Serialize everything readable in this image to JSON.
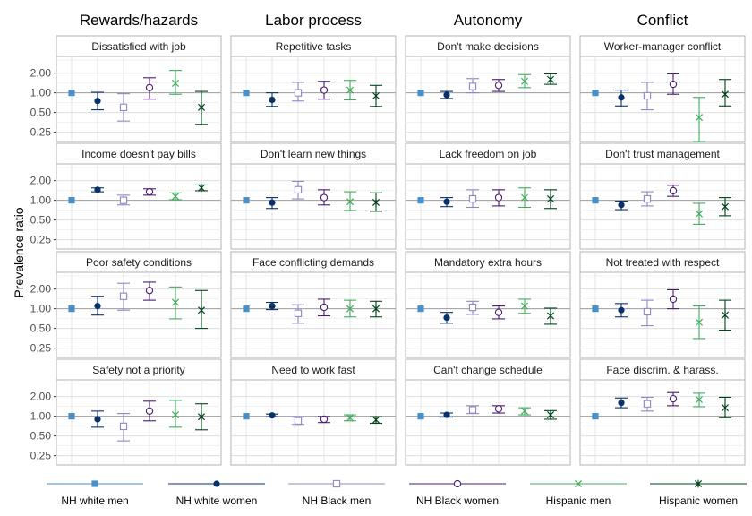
{
  "chart_data": {
    "type": "scatter",
    "ylabel": "Prevalence ratio",
    "y_scale": "log",
    "ylim": [
      0.18,
      3.6
    ],
    "yticks": [
      0.25,
      0.5,
      1.0,
      2.0
    ],
    "ytick_labels": [
      "0.25",
      "0.50",
      "1.00",
      "2.00"
    ],
    "reference_line": 1.0,
    "grid": true,
    "legend_position": "bottom",
    "columns": [
      "Rewards/hazards",
      "Labor process",
      "Autonomy",
      "Conflict"
    ],
    "groups": [
      {
        "name": "NH white men",
        "color": "#4a90c8",
        "marker": "square-filled"
      },
      {
        "name": "NH white women",
        "color": "#08306b",
        "marker": "circle-filled"
      },
      {
        "name": "NH Black men",
        "color": "#8c88c6",
        "marker": "square-open"
      },
      {
        "name": "NH Black women",
        "color": "#4d1a73",
        "marker": "circle-open"
      },
      {
        "name": "Hispanic men",
        "color": "#41ab5d",
        "marker": "x"
      },
      {
        "name": "Hispanic women",
        "color": "#00441b",
        "marker": "asterisk"
      }
    ],
    "panels": [
      {
        "title": "Dissatisfied with job",
        "column": 0,
        "row": 0,
        "values": [
          [
            1,
            1,
            1
          ],
          [
            0.75,
            0.55,
            1.02
          ],
          [
            0.6,
            0.37,
            0.97
          ],
          [
            1.2,
            0.8,
            1.7
          ],
          [
            1.4,
            0.95,
            2.2
          ],
          [
            0.6,
            0.33,
            1.05
          ]
        ]
      },
      {
        "title": "Repetitive tasks",
        "column": 1,
        "row": 0,
        "values": [
          [
            1,
            1,
            1
          ],
          [
            0.78,
            0.62,
            1.0
          ],
          [
            1.0,
            0.75,
            1.45
          ],
          [
            1.1,
            0.8,
            1.5
          ],
          [
            1.1,
            0.78,
            1.55
          ],
          [
            0.9,
            0.62,
            1.3
          ]
        ]
      },
      {
        "title": "Don't make decisions",
        "column": 2,
        "row": 0,
        "values": [
          [
            1,
            1,
            1
          ],
          [
            0.93,
            0.82,
            1.05
          ],
          [
            1.25,
            1.0,
            1.65
          ],
          [
            1.3,
            1.05,
            1.6
          ],
          [
            1.5,
            1.2,
            1.9
          ],
          [
            1.6,
            1.35,
            1.95
          ]
        ]
      },
      {
        "title": "Worker-manager conflict",
        "column": 3,
        "row": 0,
        "values": [
          [
            1,
            1,
            1
          ],
          [
            0.85,
            0.63,
            1.1
          ],
          [
            0.9,
            0.55,
            1.45
          ],
          [
            1.35,
            0.95,
            1.95
          ],
          [
            0.42,
            0.18,
            0.85
          ],
          [
            0.95,
            0.63,
            1.6
          ]
        ]
      },
      {
        "title": "Income doesn't pay bills",
        "column": 0,
        "row": 1,
        "values": [
          [
            1,
            1,
            1
          ],
          [
            1.45,
            1.35,
            1.55
          ],
          [
            1.0,
            0.85,
            1.2
          ],
          [
            1.35,
            1.2,
            1.5
          ],
          [
            1.15,
            1.02,
            1.3
          ],
          [
            1.55,
            1.4,
            1.72
          ]
        ]
      },
      {
        "title": "Don't learn new things",
        "column": 1,
        "row": 1,
        "values": [
          [
            1,
            1,
            1
          ],
          [
            0.92,
            0.75,
            1.1
          ],
          [
            1.45,
            1.05,
            1.95
          ],
          [
            1.1,
            0.85,
            1.45
          ],
          [
            0.95,
            0.7,
            1.35
          ],
          [
            0.93,
            0.68,
            1.3
          ]
        ]
      },
      {
        "title": "Lack freedom on job",
        "column": 2,
        "row": 1,
        "values": [
          [
            1,
            1,
            1
          ],
          [
            0.95,
            0.8,
            1.1
          ],
          [
            1.05,
            0.78,
            1.45
          ],
          [
            1.1,
            0.82,
            1.45
          ],
          [
            1.1,
            0.78,
            1.55
          ],
          [
            1.05,
            0.75,
            1.45
          ]
        ]
      },
      {
        "title": "Don't trust management",
        "column": 3,
        "row": 1,
        "values": [
          [
            1,
            1,
            1
          ],
          [
            0.85,
            0.72,
            0.97
          ],
          [
            1.05,
            0.82,
            1.35
          ],
          [
            1.4,
            1.15,
            1.7
          ],
          [
            0.62,
            0.43,
            0.9
          ],
          [
            0.8,
            0.58,
            1.1
          ]
        ]
      },
      {
        "title": "Poor safety conditions",
        "column": 0,
        "row": 2,
        "values": [
          [
            1,
            1,
            1
          ],
          [
            1.1,
            0.8,
            1.55
          ],
          [
            1.55,
            0.95,
            2.45
          ],
          [
            1.9,
            1.35,
            2.55
          ],
          [
            1.25,
            0.7,
            2.15
          ],
          [
            0.95,
            0.5,
            1.9
          ]
        ]
      },
      {
        "title": "Face conflicting demands",
        "column": 1,
        "row": 2,
        "values": [
          [
            1,
            1,
            1
          ],
          [
            1.1,
            0.97,
            1.25
          ],
          [
            0.85,
            0.6,
            1.15
          ],
          [
            1.05,
            0.78,
            1.4
          ],
          [
            1.0,
            0.75,
            1.35
          ],
          [
            1.0,
            0.75,
            1.3
          ]
        ]
      },
      {
        "title": "Mandatory extra hours",
        "column": 2,
        "row": 2,
        "values": [
          [
            1,
            1,
            1
          ],
          [
            0.73,
            0.6,
            0.88
          ],
          [
            1.05,
            0.82,
            1.3
          ],
          [
            0.88,
            0.7,
            1.1
          ],
          [
            1.1,
            0.85,
            1.4
          ],
          [
            0.78,
            0.58,
            1.02
          ]
        ]
      },
      {
        "title": "Not treated with respect",
        "column": 3,
        "row": 2,
        "values": [
          [
            1,
            1,
            1
          ],
          [
            0.95,
            0.75,
            1.2
          ],
          [
            0.9,
            0.55,
            1.35
          ],
          [
            1.4,
            1.0,
            1.95
          ],
          [
            0.62,
            0.35,
            1.1
          ],
          [
            0.8,
            0.47,
            1.35
          ]
        ]
      },
      {
        "title": "Safety not a priority",
        "column": 0,
        "row": 3,
        "values": [
          [
            1,
            1,
            1
          ],
          [
            0.9,
            0.68,
            1.2
          ],
          [
            0.7,
            0.42,
            1.1
          ],
          [
            1.2,
            0.85,
            1.7
          ],
          [
            1.05,
            0.68,
            1.75
          ],
          [
            0.98,
            0.62,
            1.55
          ]
        ]
      },
      {
        "title": "Need to work fast",
        "column": 1,
        "row": 3,
        "values": [
          [
            1,
            1,
            1
          ],
          [
            1.03,
            0.98,
            1.08
          ],
          [
            0.85,
            0.75,
            0.97
          ],
          [
            0.9,
            0.8,
            0.99
          ],
          [
            0.95,
            0.85,
            1.05
          ],
          [
            0.88,
            0.78,
            0.98
          ]
        ]
      },
      {
        "title": "Can't change schedule",
        "column": 2,
        "row": 3,
        "values": [
          [
            1,
            1,
            1
          ],
          [
            1.05,
            0.97,
            1.12
          ],
          [
            1.25,
            1.1,
            1.45
          ],
          [
            1.3,
            1.12,
            1.45
          ],
          [
            1.2,
            1.05,
            1.35
          ],
          [
            1.05,
            0.9,
            1.22
          ]
        ]
      },
      {
        "title": "Face discrim. & harass.",
        "column": 3,
        "row": 3,
        "values": [
          [
            1,
            1,
            1
          ],
          [
            1.6,
            1.35,
            1.9
          ],
          [
            1.55,
            1.2,
            1.95
          ],
          [
            1.85,
            1.45,
            2.3
          ],
          [
            1.8,
            1.4,
            2.25
          ],
          [
            1.35,
            0.95,
            1.95
          ]
        ]
      }
    ]
  }
}
